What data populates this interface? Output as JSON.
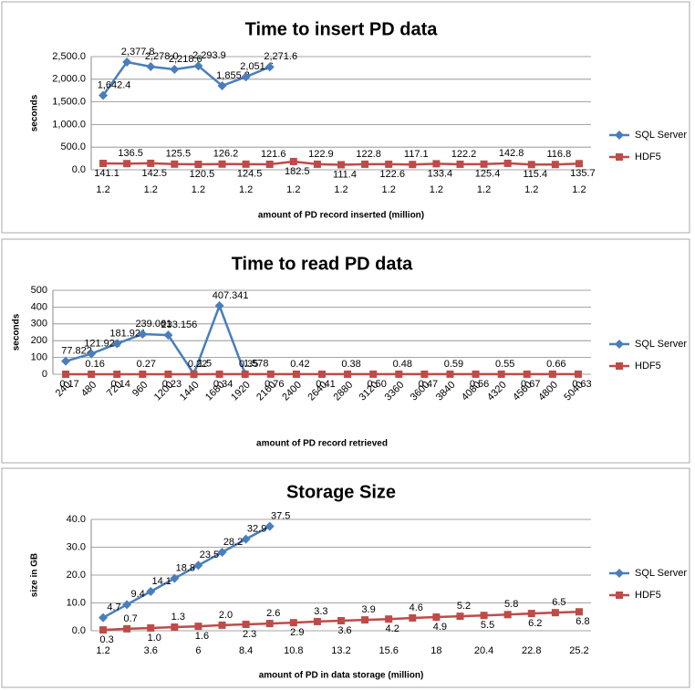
{
  "chart_data": [
    {
      "type": "line",
      "title": "Time to insert PD data",
      "x_label": "amount of PD record inserted (million)",
      "y_label": "seconds",
      "categories": [
        "1.2",
        null,
        "1.2",
        null,
        "1.2",
        null,
        "1.2",
        null,
        "1.2",
        null,
        "1.2",
        null,
        "1.2",
        null,
        "1.2",
        null,
        "1.2",
        null,
        "1.2",
        null,
        "1.2"
      ],
      "ylim": [
        0,
        2500
      ],
      "yticks": [
        {
          "value": 0,
          "label": "0.0"
        },
        {
          "value": 500,
          "label": "500.0"
        },
        {
          "value": 1000,
          "label": "1,000.0"
        },
        {
          "value": 1500,
          "label": "1,500.0"
        },
        {
          "value": 2000,
          "label": "2,000.0"
        },
        {
          "value": 2500,
          "label": "2,500.0"
        }
      ],
      "grid": true,
      "legend": "right",
      "series": [
        {
          "name": "SQL Server",
          "color": "#4a7ebb",
          "marker": "diamond",
          "values": [
            1642.4,
            2377.8,
            2278.0,
            2218.6,
            2293.9,
            1855.3,
            2051.6,
            2271.6,
            null,
            null,
            null,
            null,
            null,
            null,
            null,
            null,
            null,
            null,
            null,
            null,
            null
          ],
          "value_labels": [
            "1,642.4",
            "2,377.8",
            "2,278.0",
            "2,218.6",
            "2,293.9",
            "1,855.3",
            "2,051.6",
            "2,271.6",
            null,
            null,
            null,
            null,
            null,
            null,
            null,
            null,
            null,
            null,
            null,
            null,
            null
          ]
        },
        {
          "name": "HDF5",
          "color": "#be4b48",
          "marker": "square",
          "values": [
            141.1,
            136.5,
            142.5,
            125.5,
            120.5,
            126.2,
            124.5,
            121.6,
            182.5,
            122.9,
            111.4,
            122.8,
            122.6,
            117.1,
            133.4,
            122.2,
            125.4,
            142.8,
            115.4,
            116.8,
            135.7
          ]
        }
      ]
    },
    {
      "type": "line",
      "title": "Time to read PD data",
      "x_label": "amount of PD record retrieved",
      "y_label": "seconds",
      "categories": [
        "240",
        "480",
        "720",
        "960",
        "1200",
        "1440",
        "1680",
        "1920",
        "2160",
        "2400",
        "2640",
        "2880",
        "3120",
        "3360",
        "3600",
        "3840",
        "4080",
        "4320",
        "4560",
        "4800",
        "5040"
      ],
      "ylim": [
        0,
        500
      ],
      "yticks": [
        0,
        100,
        200,
        300,
        400,
        500
      ],
      "grid": true,
      "legend": "right",
      "series": [
        {
          "name": "SQL Server",
          "color": "#4a7ebb",
          "marker": "diamond",
          "values": [
            77.822,
            121.921,
            181.921,
            239.061,
            233.156,
            1.5,
            407.341,
            1.578,
            null,
            null,
            null,
            null,
            null,
            null,
            null,
            null,
            null,
            null,
            null,
            null,
            null
          ]
        },
        {
          "name": "HDF5",
          "color": "#be4b48",
          "marker": "square",
          "values": [
            0.17,
            0.16,
            0.14,
            0.27,
            0.23,
            0.22,
            0.34,
            0.35,
            0.76,
            0.42,
            0.41,
            0.38,
            0.5,
            0.48,
            0.47,
            0.59,
            0.56,
            0.55,
            0.67,
            0.66,
            0.63
          ],
          "value_labels": [
            "0.17",
            "0.16",
            "0.14",
            "0.27",
            "0.23",
            "0.22",
            "0.34",
            "0.35",
            "0.76",
            "0.42",
            "0.41",
            "0.38",
            "0.50",
            "0.48",
            "0.47",
            "0.59",
            "0.56",
            "0.55",
            "0.67",
            "0.66",
            "0.63"
          ]
        }
      ]
    },
    {
      "type": "line",
      "title": "Storage Size",
      "x_label": "amount of PD in data storage (million)",
      "y_label": "size in GB",
      "categories": [
        "1.2",
        null,
        "3.6",
        null,
        "6",
        null,
        "8.4",
        null,
        "10.8",
        null,
        "13.2",
        null,
        "15.6",
        null,
        "18",
        null,
        "20.4",
        null,
        "22.8",
        null,
        "25.2"
      ],
      "ylim": [
        0,
        40
      ],
      "yticks": [
        {
          "value": 0,
          "label": "0.0"
        },
        {
          "value": 10,
          "label": "10.0"
        },
        {
          "value": 20,
          "label": "20.0"
        },
        {
          "value": 30,
          "label": "30.0"
        },
        {
          "value": 40,
          "label": "40.0"
        }
      ],
      "grid": true,
      "legend": "right",
      "series": [
        {
          "name": "SQL Server",
          "color": "#4a7ebb",
          "marker": "diamond",
          "values": [
            4.7,
            9.4,
            14.1,
            18.8,
            23.5,
            28.2,
            32.9,
            37.5,
            null,
            null,
            null,
            null,
            null,
            null,
            null,
            null,
            null,
            null,
            null,
            null,
            null
          ]
        },
        {
          "name": "HDF5",
          "color": "#be4b48",
          "marker": "square",
          "values": [
            0.3,
            0.7,
            1.0,
            1.3,
            1.6,
            2.0,
            2.3,
            2.6,
            2.9,
            3.3,
            3.6,
            3.9,
            4.2,
            4.6,
            4.9,
            5.2,
            5.5,
            5.8,
            6.2,
            6.5,
            6.8
          ],
          "value_labels": [
            "0.3",
            "0.7",
            "1.0",
            "1.3",
            "1.6",
            "2.0",
            "2.3",
            "2.6",
            "2.9",
            "3.3",
            "3.6",
            "3.9",
            "4.2",
            "4.6",
            "4.9",
            "5.2",
            "5.5",
            "5.8",
            "6.2",
            "6.5",
            "6.8"
          ]
        }
      ]
    }
  ]
}
